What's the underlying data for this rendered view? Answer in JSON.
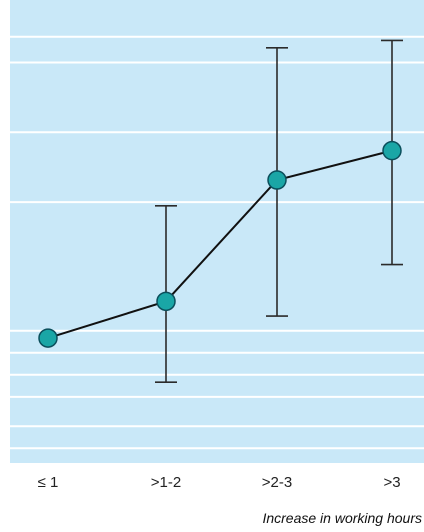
{
  "chart_data": {
    "type": "line",
    "title": "",
    "xlabel": "Increase in working hours",
    "ylabel": "",
    "categories": [
      "≤ 1",
      ">1-2",
      ">2-3",
      ">3"
    ],
    "series": [
      {
        "values": [
          0.2,
          0.7,
          2.35,
          2.75
        ],
        "error_low": [
          null,
          -0.4,
          0.5,
          1.2
        ],
        "error_high": [
          null,
          2.0,
          4.15,
          4.25
        ]
      }
    ],
    "ylim": [
      -1.5,
      4.8
    ],
    "y_gridlines": [
      -1.3,
      -1.0,
      -0.6,
      -0.3,
      0.0,
      0.3,
      2.05,
      3.0,
      3.95,
      4.3
    ],
    "grid": true,
    "legend": "none",
    "colors": {
      "plot_background": "#c9e8f8",
      "gridline": "#ffffff",
      "line": "#111111",
      "marker_fill": "#1aa6a6",
      "marker_stroke": "#0b4f5c",
      "error_bar": "#2b2b2b"
    }
  }
}
